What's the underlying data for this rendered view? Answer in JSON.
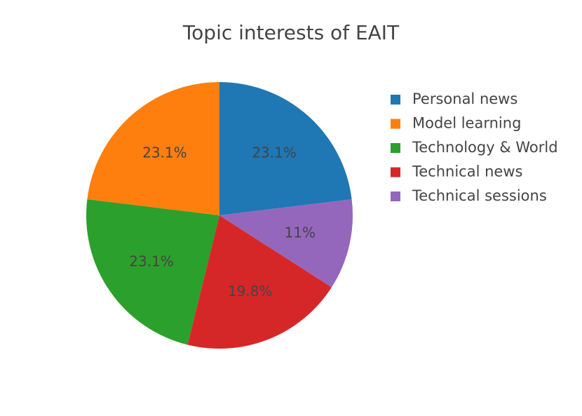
{
  "chart_data": {
    "type": "pie",
    "title": "Topic interests of EAIT",
    "categories": [
      "Personal news",
      "Model learning",
      "Technology & World",
      "Technical news",
      "Technical sessions"
    ],
    "values": [
      23.1,
      23.1,
      23.1,
      19.8,
      11
    ],
    "value_labels": [
      "23.1%",
      "23.1%",
      "23.1%",
      "19.8%",
      "11%"
    ],
    "colors": [
      "#1f77b4",
      "#ff7f0e",
      "#2ca02c",
      "#d62728",
      "#9467bd"
    ],
    "legend": "right"
  }
}
